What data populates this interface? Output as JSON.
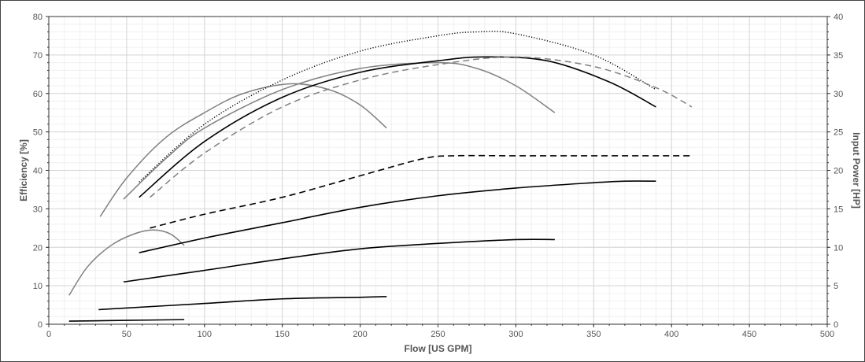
{
  "chart_data": {
    "type": "line",
    "xlabel": "Flow [US GPM]",
    "ylabel_left": "Efficiency [%]",
    "ylabel_right": "Input Power [HP]",
    "xlim": [
      0,
      500
    ],
    "ylim_left": [
      0,
      80
    ],
    "ylim_right": [
      0,
      40
    ],
    "x_ticks": [
      0,
      50,
      100,
      150,
      200,
      250,
      300,
      350,
      400,
      450,
      500
    ],
    "y_ticks_left": [
      0,
      10,
      20,
      30,
      40,
      50,
      60,
      70,
      80
    ],
    "y_ticks_right": [
      0,
      5,
      10,
      15,
      20,
      25,
      30,
      35,
      40
    ],
    "grid": true,
    "series": [
      {
        "axis": "left",
        "color": "#808080",
        "style": "solid",
        "x": [
          13,
          25,
          40,
          55,
          67,
          78,
          87
        ],
        "y": [
          7.5,
          15,
          20.5,
          23.5,
          24.5,
          23.5,
          20.5
        ]
      },
      {
        "axis": "left",
        "color": "#808080",
        "style": "solid",
        "x": [
          33,
          50,
          75,
          100,
          125,
          155,
          180,
          200,
          217
        ],
        "y": [
          28,
          38,
          48.5,
          55,
          60,
          62.5,
          61,
          57,
          51
        ]
      },
      {
        "axis": "left",
        "color": "#808080",
        "style": "solid",
        "x": [
          48,
          75,
          100,
          150,
          200,
          250,
          275,
          300,
          325
        ],
        "y": [
          32.5,
          43,
          51,
          61,
          66.5,
          68,
          66.5,
          62,
          55
        ]
      },
      {
        "axis": "left",
        "color": "#000000",
        "style": "solid",
        "x": [
          58,
          100,
          150,
          200,
          250,
          280,
          320,
          360,
          390
        ],
        "y": [
          33,
          47.5,
          59,
          65.5,
          68.5,
          69.5,
          68.5,
          63,
          56.5
        ]
      },
      {
        "axis": "left",
        "color": "#000000",
        "style": "dotted",
        "x": [
          58,
          100,
          150,
          200,
          250,
          275,
          300,
          350,
          390
        ],
        "y": [
          37,
          52,
          63.5,
          71,
          75,
          76,
          75.5,
          70,
          61
        ]
      },
      {
        "axis": "left",
        "color": "#808080",
        "style": "dashed",
        "x": [
          65,
          100,
          150,
          200,
          250,
          300,
          350,
          390,
          413
        ],
        "y": [
          33,
          44.5,
          56.5,
          63.5,
          67.5,
          69.5,
          67,
          61.5,
          56.5
        ]
      },
      {
        "axis": "right",
        "color": "#000000",
        "style": "solid",
        "x": [
          13,
          50,
          87
        ],
        "y": [
          0.4,
          0.5,
          0.6
        ]
      },
      {
        "axis": "right",
        "color": "#000000",
        "style": "solid",
        "x": [
          32,
          100,
          150,
          200,
          217
        ],
        "y": [
          1.9,
          2.7,
          3.3,
          3.5,
          3.6
        ]
      },
      {
        "axis": "right",
        "color": "#000000",
        "style": "solid",
        "x": [
          48,
          100,
          150,
          200,
          250,
          300,
          325
        ],
        "y": [
          5.5,
          7.0,
          8.5,
          9.8,
          10.5,
          11.0,
          11.0
        ]
      },
      {
        "axis": "right",
        "color": "#000000",
        "style": "solid",
        "x": [
          58,
          100,
          150,
          200,
          250,
          300,
          350,
          370,
          390
        ],
        "y": [
          9.3,
          11.2,
          13.2,
          15.2,
          16.7,
          17.7,
          18.4,
          18.6,
          18.6
        ]
      },
      {
        "axis": "right",
        "color": "#000000",
        "style": "dashed",
        "x": [
          65,
          100,
          150,
          200,
          240,
          260,
          300,
          350,
          413
        ],
        "y": [
          12.5,
          14.3,
          16.5,
          19.3,
          21.5,
          21.9,
          21.9,
          21.9,
          21.9
        ]
      }
    ]
  }
}
